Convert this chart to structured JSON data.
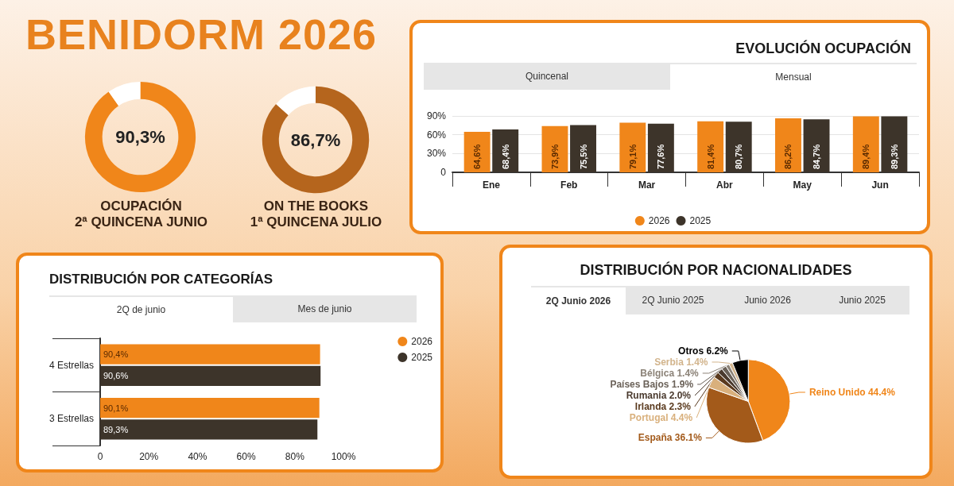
{
  "chart_data": [
    {
      "type": "other",
      "title": "BENIDORM 2026"
    },
    {
      "type": "donut",
      "title": "OCUPACIÓN\n2ª QUINCENA JUNIO",
      "categories": [
        null,
        null
      ],
      "values": [
        90.3,
        9.7
      ],
      "colors": [
        "#f0861a",
        "#ffffff"
      ],
      "value_labels": [
        "90,3%",
        null
      ]
    },
    {
      "type": "donut",
      "title": "ON THE BOOKS\n1ª QUINCENA JULIO",
      "categories": [
        null,
        null
      ],
      "values": [
        86.7,
        13.3
      ],
      "colors": [
        "#b5651d",
        "#ffffff"
      ],
      "value_labels": [
        "86,7%",
        null
      ]
    },
    {
      "type": "bar",
      "title": "EVOLUCIÓN OCUPACIÓN",
      "annotations": [
        "Quincenal",
        "Mensual"
      ],
      "categories": [
        "Ene",
        "Feb",
        "Mar",
        "Abr",
        "May",
        "Jun"
      ],
      "series": [
        {
          "name": "2026",
          "color": "#f0861a",
          "values": [
            64.6,
            73.9,
            79.1,
            81.4,
            86.2,
            89.4
          ],
          "value_labels": [
            "64,6%",
            "73,9%",
            "79,1%",
            "81,4%",
            "86,2%",
            "89,4%"
          ]
        },
        {
          "name": "2025",
          "color": "#3d342a",
          "values": [
            68.4,
            75.5,
            77.6,
            80.7,
            84.7,
            89.3
          ],
          "value_labels": [
            "68,4%",
            "75,5%",
            "77,6%",
            "80,7%",
            "84,7%",
            "89,3%"
          ]
        }
      ],
      "ylim": [
        0,
        90
      ],
      "yticks": [
        0,
        {
          "value": 30,
          "label": "30%"
        },
        {
          "value": 60,
          "label": "60%"
        },
        {
          "value": 90,
          "label": "90%"
        }
      ],
      "grid": "y",
      "legend": "bottom"
    },
    {
      "type": "bar",
      "orientation": "horizontal",
      "title": "DISTRIBUCIÓN POR CATEGORÍAS",
      "annotations": [
        "2Q de junio",
        "Mes de junio"
      ],
      "categories": [
        "4 Estrellas",
        "3 Estrellas"
      ],
      "series": [
        {
          "name": "2026",
          "color": "#f0861a",
          "values": [
            90.4,
            90.1
          ],
          "value_labels": [
            "90,4%",
            "90,1%"
          ]
        },
        {
          "name": "2025",
          "color": "#3d342a",
          "values": [
            90.6,
            89.3
          ],
          "value_labels": [
            "90,6%",
            "89,3%"
          ]
        }
      ],
      "xlim": [
        0,
        100
      ],
      "xticks": [
        0,
        {
          "value": 20,
          "label": "20%"
        },
        {
          "value": 40,
          "label": "40%"
        },
        {
          "value": 60,
          "label": "60%"
        },
        {
          "value": 80,
          "label": "80%"
        },
        {
          "value": 100,
          "label": "100%"
        }
      ],
      "legend": "top right"
    },
    {
      "type": "pie",
      "title": "DISTRIBUCIÓN POR NACIONALIDADES",
      "annotations": [
        "2Q Junio 2026",
        "2Q Junio 2025",
        "Junio 2026",
        "Junio 2025"
      ],
      "categories": [
        "Reino Unido",
        "España",
        "Portugal",
        "Irlanda",
        "Rumania",
        "Países Bajos",
        "Bélgica",
        "Serbia",
        "Otros"
      ],
      "values": [
        44.4,
        36.1,
        4.4,
        2.3,
        2.0,
        1.9,
        1.4,
        1.4,
        6.2
      ],
      "value_labels": [
        "44.4%",
        "36.1%",
        "4.4%",
        "2.3%",
        "2.0%",
        "1.9%",
        "1.4%",
        "1.4%",
        "6.2%"
      ],
      "colors": [
        "#f0861a",
        "#a35a1a",
        "#d9b07c",
        "#5a3a1e",
        "#4a3a2e",
        "#6b6259",
        "#8c8378",
        "#d2b48c",
        "#000000"
      ]
    }
  ]
}
